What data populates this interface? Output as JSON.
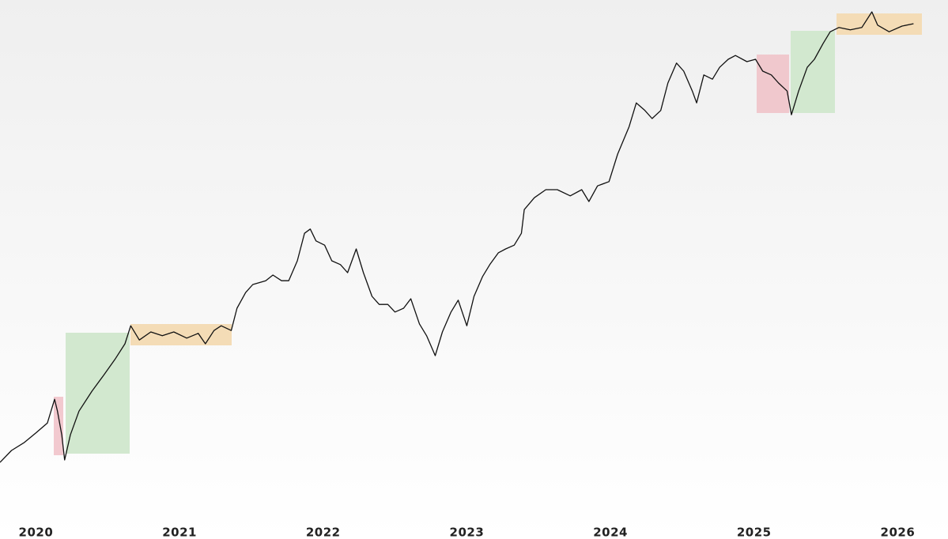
{
  "chart_data": {
    "type": "line",
    "x": [
      2019.75,
      2019.83,
      2019.92,
      2020.0,
      2020.08,
      2020.13,
      2020.15,
      2020.18,
      2020.2,
      2020.24,
      2020.3,
      2020.39,
      2020.47,
      2020.55,
      2020.62,
      2020.66,
      2020.72,
      2020.8,
      2020.88,
      2020.96,
      2021.05,
      2021.13,
      2021.18,
      2021.24,
      2021.29,
      2021.36,
      2021.4,
      2021.46,
      2021.51,
      2021.6,
      2021.65,
      2021.71,
      2021.76,
      2021.82,
      2021.87,
      2021.91,
      2021.95,
      2022.01,
      2022.06,
      2022.12,
      2022.17,
      2022.23,
      2022.28,
      2022.34,
      2022.39,
      2022.45,
      2022.5,
      2022.56,
      2022.61,
      2022.67,
      2022.72,
      2022.78,
      2022.83,
      2022.89,
      2022.94,
      2023.0,
      2023.05,
      2023.11,
      2023.16,
      2023.22,
      2023.27,
      2023.33,
      2023.38,
      2023.4,
      2023.47,
      2023.55,
      2023.63,
      2023.72,
      2023.8,
      2023.85,
      2023.91,
      2023.99,
      2024.05,
      2024.13,
      2024.18,
      2024.24,
      2024.29,
      2024.35,
      2024.4,
      2024.46,
      2024.51,
      2024.57,
      2024.6,
      2024.65,
      2024.71,
      2024.76,
      2024.82,
      2024.87,
      2024.95,
      2025.01,
      2025.06,
      2025.12,
      2025.17,
      2025.23,
      2025.26,
      2025.31,
      2025.37,
      2025.42,
      2025.48,
      2025.53,
      2025.59,
      2025.67,
      2025.75,
      2025.82,
      2025.86,
      2025.94,
      2026.03,
      2026.11
    ],
    "series": [
      {
        "color": "#111111",
        "values": [
          2.5,
          5,
          6.7,
          8.7,
          10.8,
          15.8,
          13.3,
          8.3,
          3,
          8.3,
          13.3,
          17.5,
          20.8,
          24.2,
          27.5,
          31.3,
          28.3,
          30,
          29.2,
          30,
          28.7,
          29.7,
          27.5,
          30.3,
          31.3,
          30.3,
          35,
          38.3,
          40,
          40.8,
          42,
          40.8,
          40.8,
          45,
          50.8,
          51.7,
          49.2,
          48.3,
          45,
          44.2,
          42.5,
          47.5,
          42.5,
          37.5,
          35.8,
          35.8,
          34.2,
          35,
          37,
          31.7,
          29.2,
          25,
          30,
          34.2,
          36.7,
          31.3,
          37.5,
          41.7,
          44.2,
          46.7,
          47.5,
          48.3,
          50.8,
          55.8,
          58.3,
          60,
          60,
          58.7,
          60,
          57.5,
          60.8,
          61.7,
          67.5,
          73.3,
          78.3,
          76.7,
          75,
          76.7,
          82.5,
          86.7,
          85,
          80.8,
          78.3,
          84.2,
          83.3,
          85.8,
          87.5,
          88.3,
          87,
          87.5,
          85,
          84.2,
          82.5,
          80.8,
          75.8,
          80.8,
          85.8,
          87.5,
          90.8,
          93.3,
          94.2,
          93.7,
          94.2,
          97.5,
          94.7,
          93.3,
          94.5,
          95
        ]
      }
    ],
    "xlim": [
      2019.75,
      2026.35
    ],
    "xticks": [
      2020,
      2021,
      2022,
      2023,
      2024,
      2025,
      2026
    ],
    "ylim": [
      0,
      100
    ]
  }
}
